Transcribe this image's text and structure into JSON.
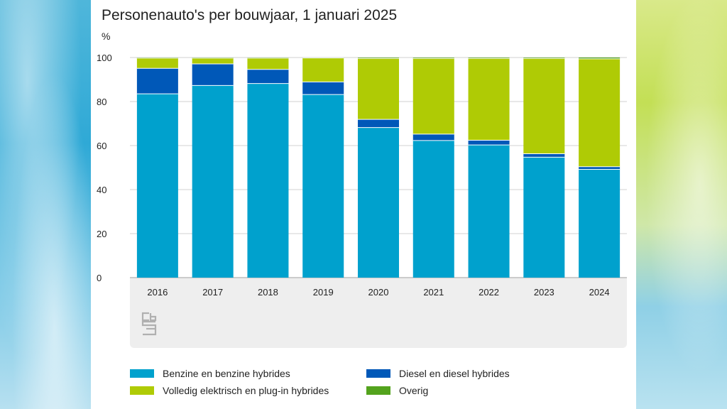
{
  "chart_data": {
    "type": "bar",
    "stacked": true,
    "title": "Personenauto's per bouwjaar, 1 januari 2025",
    "ylabel": "%",
    "xlabel": "",
    "ylim": [
      0,
      100
    ],
    "yticks": [
      0,
      20,
      40,
      60,
      80,
      100
    ],
    "grid": true,
    "legend_position": "bottom",
    "categories": [
      "2016",
      "2017",
      "2018",
      "2019",
      "2020",
      "2021",
      "2022",
      "2023",
      "2024"
    ],
    "series": [
      {
        "name": "Benzine en benzine hybrides",
        "color": "#00a1cd",
        "values": [
          83.5,
          87.3,
          88.2,
          83.2,
          68.2,
          62.3,
          60.3,
          54.7,
          49.2
        ]
      },
      {
        "name": "Diesel en diesel hybrides",
        "color": "#0058b8",
        "values": [
          11.6,
          9.8,
          6.4,
          5.7,
          3.7,
          2.9,
          2.1,
          1.6,
          1.2
        ]
      },
      {
        "name": "Volledig elektrisch en plug-in hybrides",
        "color": "#afcb05",
        "values": [
          4.6,
          2.6,
          5.1,
          10.9,
          27.7,
          34.4,
          37.2,
          43.3,
          49.0
        ]
      },
      {
        "name": "Overig",
        "color": "#53a31d",
        "values": [
          0.3,
          0.3,
          0.3,
          0.2,
          0.4,
          0.4,
          0.4,
          0.4,
          0.6
        ]
      }
    ]
  }
}
